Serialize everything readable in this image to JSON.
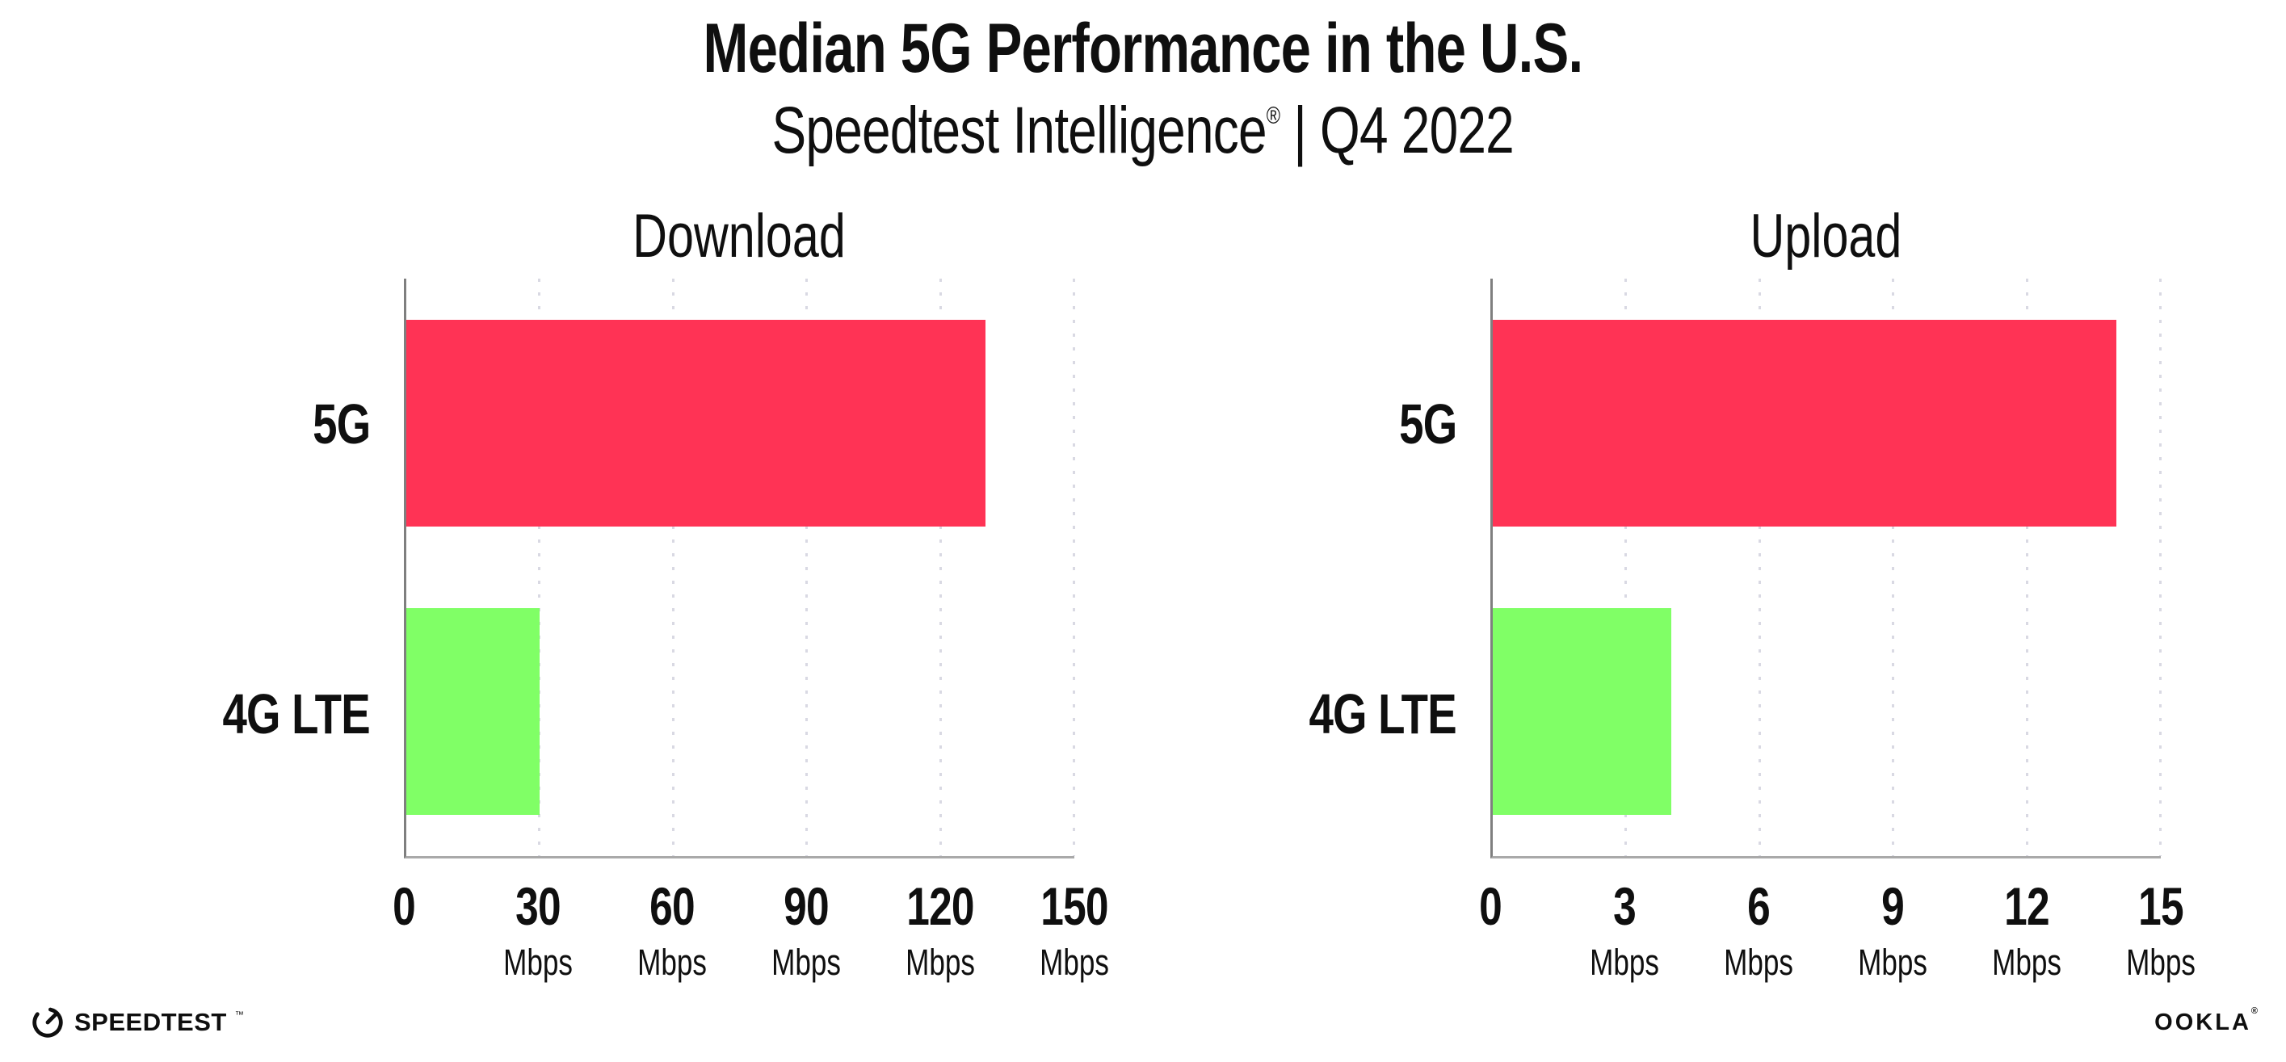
{
  "header": {
    "title": "Median 5G Performance in the U.S.",
    "subtitle_brand": "Speedtest Intelligence",
    "subtitle_reg": "®",
    "subtitle_rest": " | Q4 2022"
  },
  "chart_data": [
    {
      "type": "bar",
      "orientation": "horizontal",
      "title": "Download",
      "categories": [
        "5G",
        "4G LTE"
      ],
      "values": [
        130,
        30
      ],
      "unit": "Mbps",
      "xlim": [
        0,
        150
      ],
      "xticks": [
        0,
        30,
        60,
        90,
        120,
        150
      ],
      "bar_colors": [
        "#FF3355",
        "#80FF66"
      ],
      "grid": "vertical-dotted",
      "legend": "none"
    },
    {
      "type": "bar",
      "orientation": "horizontal",
      "title": "Upload",
      "categories": [
        "5G",
        "4G LTE"
      ],
      "values": [
        14,
        4
      ],
      "unit": "Mbps",
      "xlim": [
        0,
        15
      ],
      "xticks": [
        0,
        3,
        6,
        9,
        12,
        15
      ],
      "bar_colors": [
        "#FF3355",
        "#80FF66"
      ],
      "grid": "vertical-dotted",
      "legend": "none"
    }
  ],
  "footer": {
    "speedtest_icon": "speedometer-gauge-icon",
    "speedtest_wordmark": "SPEEDTEST",
    "speedtest_mark": "™",
    "ookla_wordmark": "OOKLA",
    "ookla_mark": "®"
  },
  "colors": {
    "bar_5g": "#FF3355",
    "bar_4g_lte": "#80FF66",
    "y_axis": "#7F7F7F",
    "x_axis": "#A9A9A9",
    "gridline": "#D9D9E3",
    "text": "#0F0F0F",
    "background": "#FFFFFF"
  }
}
